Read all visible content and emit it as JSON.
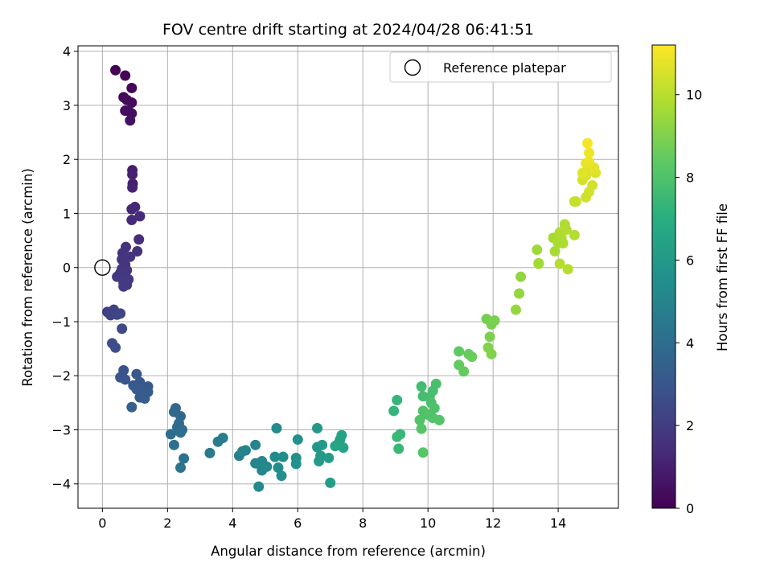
{
  "chart_data": {
    "type": "scatter",
    "title": "FOV centre drift starting at 2024/04/28 06:41:51",
    "xlabel": "Angular distance from reference (arcmin)",
    "ylabel": "Rotation from reference (arcmin)",
    "xlim": [
      -0.75,
      15.85
    ],
    "ylim": [
      -4.45,
      4.1
    ],
    "xticks": [
      0,
      2,
      4,
      6,
      8,
      10,
      12,
      14
    ],
    "yticks": [
      -4,
      -3,
      -2,
      -1,
      0,
      1,
      2,
      3,
      4
    ],
    "grid": true,
    "legend": {
      "position": "top-right",
      "entries": [
        "Reference platepar"
      ]
    },
    "reference_point": {
      "x": 0,
      "y": 0
    },
    "colorbar": {
      "label": "Hours from first FF file",
      "range": [
        0,
        11.2
      ],
      "ticks": [
        0,
        2,
        4,
        6,
        8,
        10
      ],
      "colormap": "viridis"
    },
    "points": [
      {
        "x": 0.4,
        "y": 3.65,
        "t": 0.05
      },
      {
        "x": 0.7,
        "y": 3.55,
        "t": 0.12
      },
      {
        "x": 0.9,
        "y": 3.32,
        "t": 0.2
      },
      {
        "x": 0.65,
        "y": 3.15,
        "t": 0.25
      },
      {
        "x": 0.75,
        "y": 3.1,
        "t": 0.3
      },
      {
        "x": 0.9,
        "y": 3.05,
        "t": 0.35
      },
      {
        "x": 0.8,
        "y": 2.9,
        "t": 0.4
      },
      {
        "x": 0.7,
        "y": 2.9,
        "t": 0.42
      },
      {
        "x": 0.9,
        "y": 2.85,
        "t": 0.45
      },
      {
        "x": 0.85,
        "y": 2.72,
        "t": 0.5
      },
      {
        "x": 0.92,
        "y": 1.8,
        "t": 0.9
      },
      {
        "x": 0.92,
        "y": 1.72,
        "t": 0.95
      },
      {
        "x": 0.93,
        "y": 1.55,
        "t": 1.0
      },
      {
        "x": 0.92,
        "y": 1.48,
        "t": 1.05
      },
      {
        "x": 0.9,
        "y": 1.08,
        "t": 1.2
      },
      {
        "x": 1.0,
        "y": 1.12,
        "t": 1.25
      },
      {
        "x": 1.15,
        "y": 0.95,
        "t": 1.3
      },
      {
        "x": 0.9,
        "y": 0.88,
        "t": 1.35
      },
      {
        "x": 1.12,
        "y": 0.52,
        "t": 1.45
      },
      {
        "x": 0.72,
        "y": 0.38,
        "t": 1.55
      },
      {
        "x": 1.07,
        "y": 0.3,
        "t": 1.6
      },
      {
        "x": 0.62,
        "y": 0.27,
        "t": 1.62
      },
      {
        "x": 0.68,
        "y": 0.2,
        "t": 1.65
      },
      {
        "x": 0.85,
        "y": 0.2,
        "t": 1.67
      },
      {
        "x": 0.6,
        "y": 0.15,
        "t": 1.7
      },
      {
        "x": 0.7,
        "y": 0.05,
        "t": 1.72
      },
      {
        "x": 0.6,
        "y": -0.02,
        "t": 1.75
      },
      {
        "x": 0.75,
        "y": -0.05,
        "t": 1.78
      },
      {
        "x": 0.55,
        "y": -0.1,
        "t": 1.8
      },
      {
        "x": 0.45,
        "y": -0.17,
        "t": 1.82
      },
      {
        "x": 0.72,
        "y": -0.18,
        "t": 1.84
      },
      {
        "x": 0.8,
        "y": -0.22,
        "t": 1.86
      },
      {
        "x": 0.65,
        "y": -0.28,
        "t": 1.88
      },
      {
        "x": 0.75,
        "y": -0.32,
        "t": 1.9
      },
      {
        "x": 0.65,
        "y": -0.35,
        "t": 1.92
      },
      {
        "x": 0.15,
        "y": -0.82,
        "t": 2.1
      },
      {
        "x": 0.35,
        "y": -0.78,
        "t": 2.15
      },
      {
        "x": 0.25,
        "y": -0.88,
        "t": 2.2
      },
      {
        "x": 0.45,
        "y": -0.87,
        "t": 2.25
      },
      {
        "x": 0.55,
        "y": -0.85,
        "t": 2.3
      },
      {
        "x": 0.6,
        "y": -1.13,
        "t": 2.45
      },
      {
        "x": 0.3,
        "y": -1.4,
        "t": 2.6
      },
      {
        "x": 0.4,
        "y": -1.48,
        "t": 2.65
      },
      {
        "x": 0.65,
        "y": -1.9,
        "t": 2.85
      },
      {
        "x": 0.55,
        "y": -2.03,
        "t": 2.9
      },
      {
        "x": 0.7,
        "y": -2.07,
        "t": 2.95
      },
      {
        "x": 1.05,
        "y": -1.97,
        "t": 3.0
      },
      {
        "x": 1.15,
        "y": -2.12,
        "t": 3.05
      },
      {
        "x": 0.95,
        "y": -2.18,
        "t": 3.1
      },
      {
        "x": 1.4,
        "y": -2.2,
        "t": 3.15
      },
      {
        "x": 1.05,
        "y": -2.25,
        "t": 3.18
      },
      {
        "x": 1.25,
        "y": -2.27,
        "t": 3.2
      },
      {
        "x": 1.4,
        "y": -2.3,
        "t": 3.22
      },
      {
        "x": 1.15,
        "y": -2.4,
        "t": 3.25
      },
      {
        "x": 1.3,
        "y": -2.42,
        "t": 3.28
      },
      {
        "x": 0.9,
        "y": -2.58,
        "t": 3.35
      },
      {
        "x": 2.25,
        "y": -2.6,
        "t": 3.7
      },
      {
        "x": 2.2,
        "y": -2.67,
        "t": 3.75
      },
      {
        "x": 2.4,
        "y": -2.75,
        "t": 3.8
      },
      {
        "x": 2.35,
        "y": -2.88,
        "t": 3.85
      },
      {
        "x": 2.3,
        "y": -2.95,
        "t": 3.9
      },
      {
        "x": 2.45,
        "y": -3.0,
        "t": 3.95
      },
      {
        "x": 2.1,
        "y": -3.08,
        "t": 4.0
      },
      {
        "x": 2.4,
        "y": -3.05,
        "t": 4.02
      },
      {
        "x": 2.2,
        "y": -3.28,
        "t": 4.1
      },
      {
        "x": 2.5,
        "y": -3.53,
        "t": 4.2
      },
      {
        "x": 2.4,
        "y": -3.7,
        "t": 4.25
      },
      {
        "x": 3.3,
        "y": -3.43,
        "t": 4.5
      },
      {
        "x": 3.55,
        "y": -3.22,
        "t": 4.6
      },
      {
        "x": 3.7,
        "y": -3.15,
        "t": 4.65
      },
      {
        "x": 4.2,
        "y": -3.48,
        "t": 4.85
      },
      {
        "x": 4.3,
        "y": -3.4,
        "t": 4.9
      },
      {
        "x": 4.4,
        "y": -3.38,
        "t": 4.95
      },
      {
        "x": 4.7,
        "y": -3.28,
        "t": 5.0
      },
      {
        "x": 4.7,
        "y": -3.62,
        "t": 5.05
      },
      {
        "x": 4.85,
        "y": -3.65,
        "t": 5.1
      },
      {
        "x": 4.9,
        "y": -3.58,
        "t": 5.12
      },
      {
        "x": 4.9,
        "y": -3.75,
        "t": 5.15
      },
      {
        "x": 5.05,
        "y": -3.68,
        "t": 5.2
      },
      {
        "x": 4.8,
        "y": -4.05,
        "t": 5.25
      },
      {
        "x": 5.3,
        "y": -3.5,
        "t": 5.3
      },
      {
        "x": 5.35,
        "y": -2.97,
        "t": 5.35
      },
      {
        "x": 5.4,
        "y": -3.7,
        "t": 5.4
      },
      {
        "x": 5.55,
        "y": -3.5,
        "t": 5.45
      },
      {
        "x": 5.5,
        "y": -3.85,
        "t": 5.5
      },
      {
        "x": 5.95,
        "y": -3.52,
        "t": 5.6
      },
      {
        "x": 5.95,
        "y": -3.63,
        "t": 5.65
      },
      {
        "x": 6.0,
        "y": -3.18,
        "t": 5.7
      },
      {
        "x": 6.6,
        "y": -2.97,
        "t": 5.9
      },
      {
        "x": 6.6,
        "y": -3.32,
        "t": 5.95
      },
      {
        "x": 6.75,
        "y": -3.28,
        "t": 6.0
      },
      {
        "x": 6.7,
        "y": -3.48,
        "t": 6.05
      },
      {
        "x": 6.65,
        "y": -3.58,
        "t": 6.1
      },
      {
        "x": 6.95,
        "y": -3.52,
        "t": 6.15
      },
      {
        "x": 7.0,
        "y": -3.98,
        "t": 6.2
      },
      {
        "x": 7.3,
        "y": -3.18,
        "t": 6.3
      },
      {
        "x": 7.35,
        "y": -3.1,
        "t": 6.35
      },
      {
        "x": 7.25,
        "y": -3.25,
        "t": 6.4
      },
      {
        "x": 7.4,
        "y": -3.33,
        "t": 6.45
      },
      {
        "x": 7.15,
        "y": -3.3,
        "t": 6.5
      },
      {
        "x": 8.95,
        "y": -2.65,
        "t": 7.3
      },
      {
        "x": 9.05,
        "y": -2.45,
        "t": 7.35
      },
      {
        "x": 9.15,
        "y": -3.08,
        "t": 7.4
      },
      {
        "x": 9.1,
        "y": -3.35,
        "t": 7.45
      },
      {
        "x": 9.05,
        "y": -3.13,
        "t": 7.5
      },
      {
        "x": 9.8,
        "y": -2.2,
        "t": 7.7
      },
      {
        "x": 9.85,
        "y": -2.38,
        "t": 7.75
      },
      {
        "x": 10.05,
        "y": -2.4,
        "t": 7.8
      },
      {
        "x": 10.15,
        "y": -2.28,
        "t": 7.85
      },
      {
        "x": 10.25,
        "y": -2.15,
        "t": 7.9
      },
      {
        "x": 10.1,
        "y": -2.5,
        "t": 7.95
      },
      {
        "x": 10.2,
        "y": -2.6,
        "t": 8.0
      },
      {
        "x": 9.85,
        "y": -2.65,
        "t": 8.02
      },
      {
        "x": 10.0,
        "y": -2.72,
        "t": 8.05
      },
      {
        "x": 10.15,
        "y": -2.78,
        "t": 8.08
      },
      {
        "x": 9.75,
        "y": -2.82,
        "t": 8.1
      },
      {
        "x": 10.35,
        "y": -2.82,
        "t": 8.12
      },
      {
        "x": 9.8,
        "y": -2.98,
        "t": 8.15
      },
      {
        "x": 9.85,
        "y": -3.42,
        "t": 8.2
      },
      {
        "x": 10.95,
        "y": -1.55,
        "t": 8.4
      },
      {
        "x": 10.95,
        "y": -1.8,
        "t": 8.45
      },
      {
        "x": 11.1,
        "y": -1.92,
        "t": 8.5
      },
      {
        "x": 11.25,
        "y": -1.6,
        "t": 8.55
      },
      {
        "x": 11.35,
        "y": -1.65,
        "t": 8.6
      },
      {
        "x": 11.8,
        "y": -0.95,
        "t": 8.8
      },
      {
        "x": 11.95,
        "y": -1.05,
        "t": 8.85
      },
      {
        "x": 12.05,
        "y": -0.98,
        "t": 8.9
      },
      {
        "x": 11.9,
        "y": -1.28,
        "t": 8.95
      },
      {
        "x": 11.85,
        "y": -1.48,
        "t": 9.0
      },
      {
        "x": 11.95,
        "y": -1.6,
        "t": 9.05
      },
      {
        "x": 12.85,
        "y": -0.17,
        "t": 9.3
      },
      {
        "x": 12.8,
        "y": -0.48,
        "t": 9.35
      },
      {
        "x": 12.7,
        "y": -0.78,
        "t": 9.4
      },
      {
        "x": 13.35,
        "y": 0.33,
        "t": 9.55
      },
      {
        "x": 13.4,
        "y": 0.08,
        "t": 9.6
      },
      {
        "x": 13.4,
        "y": 0.07,
        "t": 9.62
      },
      {
        "x": 13.85,
        "y": 0.55,
        "t": 9.7
      },
      {
        "x": 13.9,
        "y": 0.3,
        "t": 9.72
      },
      {
        "x": 14.0,
        "y": 0.45,
        "t": 9.75
      },
      {
        "x": 14.1,
        "y": 0.55,
        "t": 9.78
      },
      {
        "x": 14.15,
        "y": 0.45,
        "t": 9.8
      },
      {
        "x": 14.2,
        "y": 0.8,
        "t": 9.82
      },
      {
        "x": 14.05,
        "y": 0.65,
        "t": 9.85
      },
      {
        "x": 14.25,
        "y": 0.7,
        "t": 9.88
      },
      {
        "x": 14.5,
        "y": 0.6,
        "t": 9.9
      },
      {
        "x": 14.05,
        "y": 0.07,
        "t": 9.92
      },
      {
        "x": 14.3,
        "y": -0.03,
        "t": 9.95
      },
      {
        "x": 14.5,
        "y": 1.22,
        "t": 10.2
      },
      {
        "x": 14.55,
        "y": 1.22,
        "t": 10.25
      },
      {
        "x": 14.85,
        "y": 1.3,
        "t": 10.35
      },
      {
        "x": 14.95,
        "y": 1.4,
        "t": 10.4
      },
      {
        "x": 15.05,
        "y": 1.52,
        "t": 10.45
      },
      {
        "x": 14.75,
        "y": 1.62,
        "t": 10.5
      },
      {
        "x": 14.85,
        "y": 1.7,
        "t": 10.55
      },
      {
        "x": 14.95,
        "y": 1.8,
        "t": 10.6
      },
      {
        "x": 15.15,
        "y": 1.75,
        "t": 10.65
      },
      {
        "x": 14.75,
        "y": 1.75,
        "t": 10.7
      },
      {
        "x": 15.1,
        "y": 1.85,
        "t": 10.75
      },
      {
        "x": 14.85,
        "y": 1.93,
        "t": 10.8
      },
      {
        "x": 14.95,
        "y": 1.95,
        "t": 10.85
      },
      {
        "x": 14.95,
        "y": 2.12,
        "t": 10.95
      },
      {
        "x": 14.9,
        "y": 2.3,
        "t": 11.05
      }
    ]
  }
}
